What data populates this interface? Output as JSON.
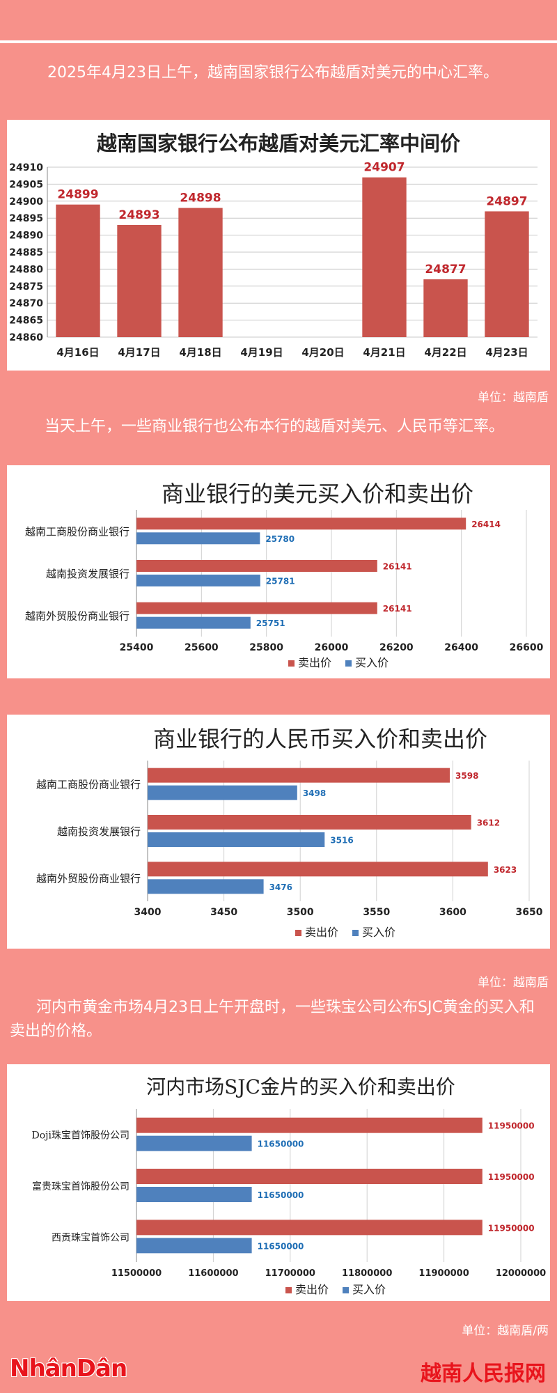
{
  "intro1": "2025年4月23日上午，越南国家银行公布越盾对美元的中心汇率。",
  "unit1": "单位：越南盾",
  "intro2": "当天上午，一些商业银行也公布本行的越盾对美元、人民币等汇率。",
  "unit2": "单位：越南盾",
  "intro3": "河内市黄金市场4月23日上午开盘时，一些珠宝公司公布SJC黄金的买入和卖出的价格。",
  "unit3": "单位：越南盾/两",
  "footer": {
    "logo": "NhânDân",
    "site": "越南人民报网"
  },
  "colors": {
    "sell": "#c9544d",
    "buy": "#4f81bd",
    "sell_label": "#c0272d",
    "buy_label": "#1f6eb5"
  },
  "chart_data": [
    {
      "type": "bar",
      "title": "越南国家银行公布越盾对美元汇率中间价",
      "categories": [
        "4月16日",
        "4月17日",
        "4月18日",
        "4月19日",
        "4月20日",
        "4月21日",
        "4月22日",
        "4月23日"
      ],
      "values": [
        24899,
        24893,
        24898,
        null,
        null,
        24907,
        24877,
        24897
      ],
      "ylim": [
        24860,
        24910
      ],
      "yticks": [
        24860,
        24865,
        24870,
        24875,
        24880,
        24885,
        24890,
        24895,
        24900,
        24905,
        24910
      ],
      "grid": true
    },
    {
      "type": "bar",
      "orientation": "horizontal",
      "title": "商业银行的美元买入价和卖出价",
      "categories": [
        "越南工商股份商业银行",
        "越南投资发展银行",
        "越南外贸股份商业银行"
      ],
      "series": [
        {
          "name": "卖出价",
          "values": [
            26414,
            26141,
            26141
          ]
        },
        {
          "name": "买入价",
          "values": [
            25780,
            25781,
            25751
          ]
        }
      ],
      "xlim": [
        25400,
        26600
      ],
      "xticks": [
        25400,
        25600,
        25800,
        26000,
        26200,
        26400,
        26600
      ],
      "legend": "bottom"
    },
    {
      "type": "bar",
      "orientation": "horizontal",
      "title": "商业银行的人民币买入价和卖出价",
      "categories": [
        "越南工商股份商业银行",
        "越南投资发展银行",
        "越南外贸股份商业银行"
      ],
      "series": [
        {
          "name": "卖出价",
          "values": [
            3598,
            3612,
            3623
          ]
        },
        {
          "name": "买入价",
          "values": [
            3498,
            3516,
            3476
          ]
        }
      ],
      "xlim": [
        3400,
        3650
      ],
      "xticks": [
        3400,
        3450,
        3500,
        3550,
        3600,
        3650
      ],
      "legend": "bottom"
    },
    {
      "type": "bar",
      "orientation": "horizontal",
      "title": "河内市场SJC金片的买入价和卖出价",
      "categories": [
        "Doji珠宝首饰股份公司",
        "富贵珠宝首饰股份公司",
        "西贡珠宝首饰公司"
      ],
      "series": [
        {
          "name": "卖出价",
          "values": [
            11950000,
            11950000,
            11950000
          ]
        },
        {
          "name": "买入价",
          "values": [
            11650000,
            11650000,
            11650000
          ]
        }
      ],
      "xlim": [
        11500000,
        12000000
      ],
      "xticks": [
        11500000,
        11600000,
        11700000,
        11800000,
        11900000,
        12000000
      ],
      "legend": "bottom"
    }
  ]
}
